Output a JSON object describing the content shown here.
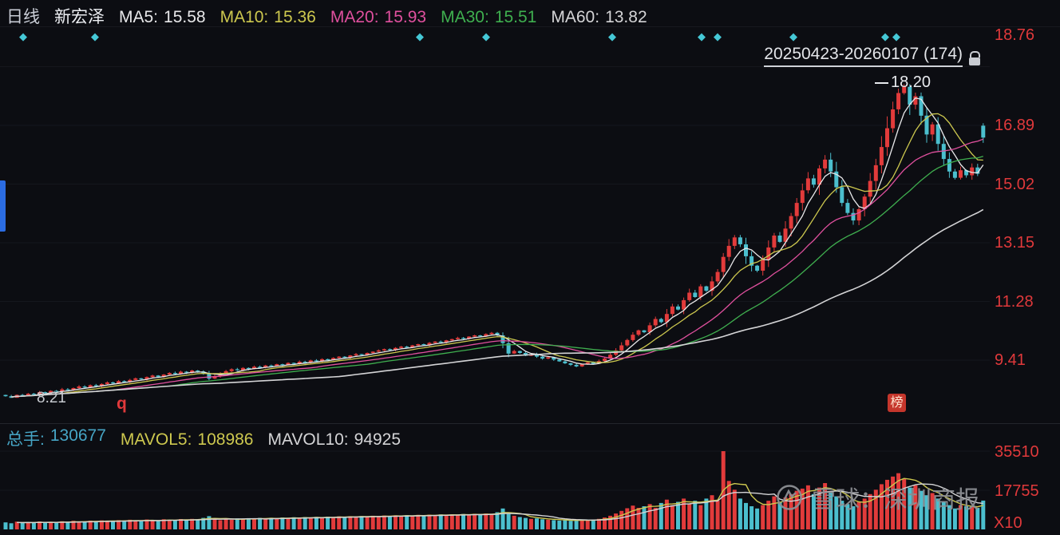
{
  "colors": {
    "background": "#0c0d12",
    "up": "#e23b3b",
    "down": "#4bbfce",
    "ma5": "#e8e8ea",
    "ma10": "#cdc84f",
    "ma20": "#e0509e",
    "ma30": "#3faf4f",
    "ma60": "#d4d4d6",
    "axis_text": "#e0393b",
    "marker": "#45c8d6",
    "volume_label": "#46a5c5"
  },
  "icons": {
    "event_diamond": "◆"
  },
  "header": {
    "period": "日线",
    "stock_name": "新宏泽",
    "mas": [
      {
        "label": "MA5:",
        "value": "15.58"
      },
      {
        "label": "MA10:",
        "value": "15.36"
      },
      {
        "label": "MA20:",
        "value": "15.93"
      },
      {
        "label": "MA30:",
        "value": "15.51"
      },
      {
        "label": "MA60:",
        "value": "13.82"
      }
    ]
  },
  "range_selector": {
    "label": "20250423-20260107 (174)"
  },
  "price_axis": {
    "ticks": [
      "18.76",
      "16.89",
      "15.02",
      "13.15",
      "11.28",
      "9.41"
    ]
  },
  "annotations": {
    "peak": "18.20",
    "low": "8.21",
    "q_marker": "q",
    "rank_badge": "榜"
  },
  "volume_header": {
    "items": [
      {
        "label": "总手:",
        "value": "130677"
      },
      {
        "label": "MAVOL5:",
        "value": "108986"
      },
      {
        "label": "MAVOL10:",
        "value": "94925"
      }
    ]
  },
  "volume_axis": {
    "ticks": [
      "35510",
      "17755"
    ],
    "unit": "X10"
  },
  "watermark": {
    "text": "雪球：深圳商报"
  },
  "chart_data": {
    "type": "candlestick+volume",
    "title": "新宏泽 日线",
    "date_range": "20250423-20260107",
    "bar_count": 174,
    "price_axis_ticks": [
      18.76,
      16.89,
      15.02,
      13.15,
      11.28,
      9.41
    ],
    "price_top": 20.02,
    "price_bottom": 7.4,
    "volume_axis_max": 35510,
    "peak_high": 18.2,
    "min_low": 8.21,
    "ma_periods": [
      5,
      10,
      20,
      30,
      60
    ],
    "mavol_periods": [
      5,
      10
    ],
    "event_marker_xs": [
      24,
      114,
      521,
      604,
      762,
      874,
      894,
      989,
      1104,
      1118
    ],
    "open_overrides": {
      "173": 16.88
    },
    "high_overrides": {
      "159": 18.2,
      "173": 16.96
    },
    "closes": [
      8.26,
      8.21,
      8.3,
      8.27,
      8.34,
      8.31,
      8.39,
      8.36,
      8.43,
      8.41,
      8.48,
      8.45,
      8.52,
      8.57,
      8.54,
      8.61,
      8.58,
      8.65,
      8.7,
      8.67,
      8.74,
      8.71,
      8.78,
      8.83,
      8.8,
      8.87,
      8.92,
      8.88,
      8.95,
      9.0,
      8.97,
      9.04,
      9.01,
      9.08,
      9.05,
      8.97,
      8.82,
      8.9,
      8.99,
      9.06,
      9.12,
      9.09,
      9.16,
      9.13,
      9.2,
      9.17,
      9.24,
      9.21,
      9.28,
      9.25,
      9.32,
      9.29,
      9.36,
      9.33,
      9.4,
      9.37,
      9.44,
      9.41,
      9.48,
      9.52,
      9.49,
      9.56,
      9.6,
      9.57,
      9.64,
      9.68,
      9.72,
      9.76,
      9.73,
      9.8,
      9.84,
      9.81,
      9.88,
      9.92,
      9.89,
      9.96,
      10.0,
      9.97,
      10.04,
      10.08,
      10.12,
      10.09,
      10.16,
      10.2,
      10.17,
      10.24,
      10.28,
      10.2,
      9.95,
      9.62,
      9.7,
      9.64,
      9.55,
      9.6,
      9.52,
      9.46,
      9.5,
      9.43,
      9.37,
      9.31,
      9.26,
      9.21,
      9.28,
      9.34,
      9.3,
      9.38,
      9.46,
      9.58,
      9.72,
      9.88,
      10.05,
      10.22,
      10.36,
      10.3,
      10.52,
      10.72,
      10.62,
      10.88,
      11.12,
      11.02,
      11.32,
      11.56,
      11.42,
      11.76,
      11.62,
      11.92,
      12.22,
      12.7,
      13.05,
      13.32,
      13.1,
      12.72,
      12.42,
      12.26,
      12.6,
      13.0,
      13.38,
      13.18,
      13.6,
      14.0,
      14.42,
      14.82,
      15.2,
      15.0,
      15.52,
      15.8,
      15.42,
      14.92,
      14.42,
      14.1,
      13.86,
      14.22,
      14.62,
      15.12,
      15.62,
      16.2,
      16.8,
      17.4,
      17.92,
      18.12,
      17.55,
      17.82,
      17.2,
      16.6,
      16.92,
      16.3,
      15.82,
      15.42,
      15.22,
      15.46,
      15.3,
      15.55,
      15.35,
      16.5
    ],
    "volumes": [
      3200,
      2800,
      3500,
      3000,
      3300,
      2900,
      3600,
      3100,
      3400,
      3000,
      3700,
      3200,
      3900,
      3500,
      3300,
      4000,
      3600,
      4100,
      3800,
      3500,
      4200,
      3800,
      4400,
      4000,
      3700,
      4500,
      4100,
      3800,
      4600,
      4200,
      4300,
      4700,
      4000,
      4800,
      4400,
      5200,
      6000,
      4600,
      4200,
      4800,
      4400,
      5000,
      4600,
      5100,
      4700,
      5200,
      4800,
      5300,
      4900,
      5400,
      5000,
      5500,
      5100,
      5600,
      5200,
      5700,
      5300,
      5800,
      5400,
      5900,
      5500,
      6000,
      5600,
      6100,
      5700,
      6200,
      5800,
      6300,
      5900,
      6400,
      6000,
      6500,
      6100,
      6600,
      6200,
      6700,
      6300,
      6800,
      6400,
      6900,
      6500,
      7000,
      6600,
      7100,
      6700,
      7200,
      6800,
      7800,
      9500,
      7000,
      6200,
      5600,
      5200,
      4800,
      5000,
      4600,
      4400,
      4200,
      4000,
      4300,
      3900,
      4100,
      4400,
      4000,
      4500,
      4800,
      5400,
      6200,
      7200,
      8400,
      9600,
      10800,
      9800,
      10500,
      11500,
      9800,
      12000,
      13500,
      11000,
      12500,
      14000,
      11500,
      13000,
      11000,
      14000,
      15500,
      13000,
      35510,
      22000,
      18000,
      14000,
      12000,
      10500,
      9500,
      11000,
      13000,
      15000,
      12500,
      14500,
      16000,
      17500,
      18500,
      20000,
      16000,
      19000,
      21000,
      17000,
      15000,
      13000,
      11500,
      10500,
      12500,
      14000,
      16000,
      18000,
      20500,
      22500,
      24000,
      25500,
      23000,
      19000,
      20000,
      17500,
      15500,
      16500,
      14000,
      12500,
      11000,
      9500,
      11000,
      10500,
      10400,
      9800,
      13068
    ]
  }
}
